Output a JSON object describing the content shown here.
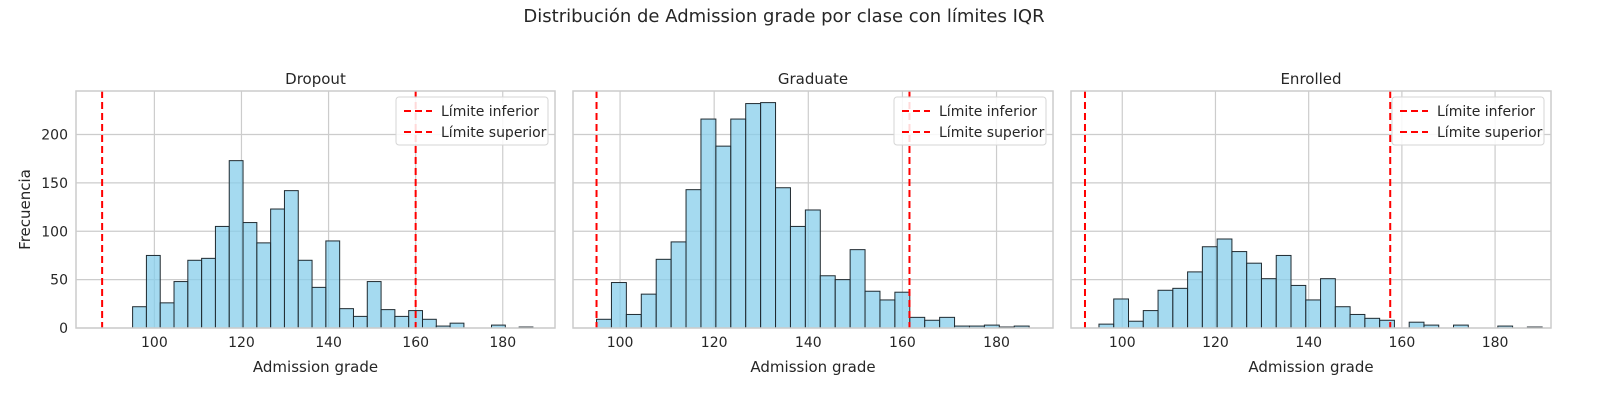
{
  "suptitle": "Distribución de Admission grade por clase con límites IQR",
  "colors": {
    "bar_fill": "#87ceeb",
    "bar_edge": "#1f2a30",
    "limit_line": "#ff0000",
    "grid": "#cccccc",
    "axes_edge": "#cccccc"
  },
  "chart_data": [
    {
      "type": "bar",
      "title": "Dropout",
      "xlabel": "Admission grade",
      "ylabel": "Frecuencia",
      "xlim": [
        82,
        192
      ],
      "ylim": [
        0,
        245
      ],
      "xticks": [
        100,
        120,
        140,
        160,
        180
      ],
      "yticks": [
        0,
        50,
        100,
        150,
        200
      ],
      "bin_start": 95.0,
      "bin_width": 3.17,
      "values": [
        22,
        75,
        26,
        48,
        70,
        72,
        105,
        173,
        109,
        88,
        123,
        142,
        70,
        42,
        90,
        20,
        12,
        48,
        19,
        12,
        18,
        9,
        2,
        5,
        0,
        0,
        3,
        0,
        1,
        0
      ],
      "limits": {
        "lower": 88.0,
        "upper": 160.0
      },
      "legend": {
        "position": "top-right",
        "entries": [
          "Límite inferior",
          "Límite superior"
        ]
      },
      "grid": true
    },
    {
      "type": "bar",
      "title": "Graduate",
      "xlabel": "Admission grade",
      "ylabel": "",
      "xlim": [
        90,
        192
      ],
      "ylim": [
        0,
        245
      ],
      "xticks": [
        100,
        120,
        140,
        160,
        180
      ],
      "yticks": [
        0,
        50,
        100,
        150,
        200
      ],
      "bin_start": 95.0,
      "bin_width": 3.17,
      "values": [
        9,
        47,
        14,
        35,
        71,
        89,
        143,
        216,
        188,
        216,
        232,
        233,
        145,
        105,
        122,
        54,
        50,
        81,
        38,
        29,
        37,
        11,
        8,
        11,
        2,
        2,
        3,
        1,
        2,
        0
      ],
      "limits": {
        "lower": 95.0,
        "upper": 161.5
      },
      "legend": {
        "position": "top-right",
        "entries": [
          "Límite inferior",
          "Límite superior"
        ]
      },
      "grid": true
    },
    {
      "type": "bar",
      "title": "Enrolled",
      "xlabel": "Admission grade",
      "ylabel": "",
      "xlim": [
        89,
        192
      ],
      "ylim": [
        0,
        245
      ],
      "xticks": [
        100,
        120,
        140,
        160,
        180
      ],
      "yticks": [
        0,
        50,
        100,
        150,
        200
      ],
      "bin_start": 95.0,
      "bin_width": 3.17,
      "values": [
        4,
        30,
        7,
        18,
        39,
        41,
        58,
        84,
        92,
        79,
        67,
        51,
        75,
        44,
        29,
        51,
        22,
        14,
        10,
        8,
        0,
        6,
        3,
        0,
        3,
        0,
        0,
        2,
        0,
        1
      ],
      "limits": {
        "lower": 92.0,
        "upper": 157.5
      },
      "legend": {
        "position": "top-right",
        "entries": [
          "Límite inferior",
          "Límite superior"
        ]
      },
      "grid": true
    }
  ]
}
